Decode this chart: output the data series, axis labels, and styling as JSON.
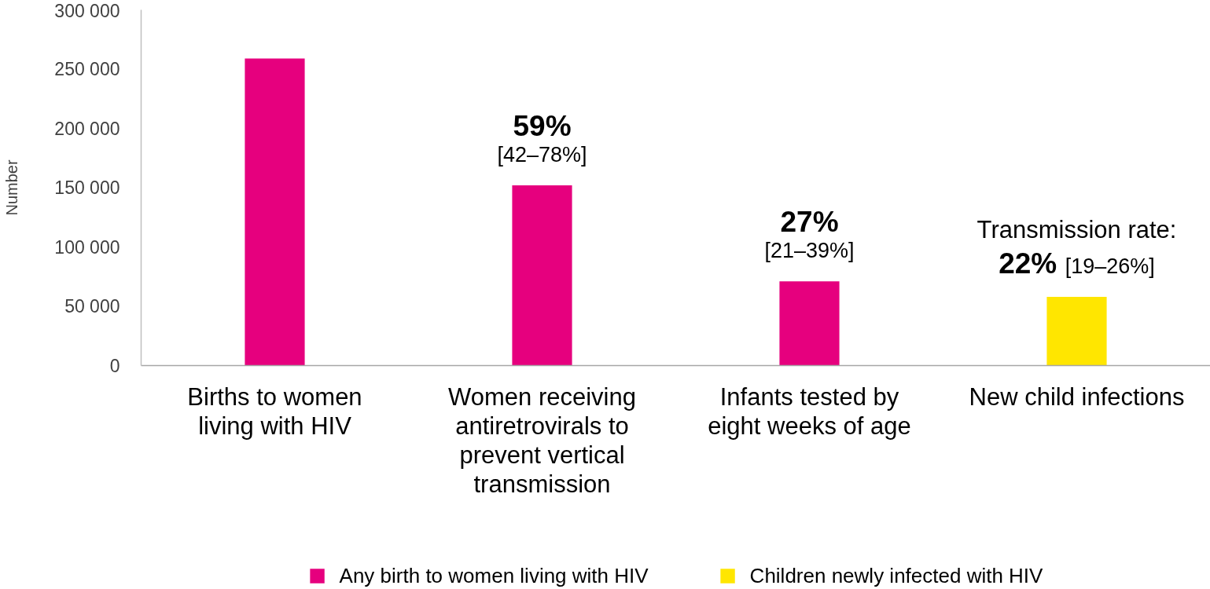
{
  "chart_data": {
    "type": "bar",
    "ylabel": "Number",
    "categories": [
      "Births to women living with HIV",
      "Women receiving antiretrovirals to prevent vertical transmission",
      "Infants tested by eight weeks of age",
      "New child infections"
    ],
    "series": [
      {
        "name": "Any birth to women living with HIV",
        "color": "#e6007e",
        "values": [
          259000,
          152000,
          71000,
          null
        ]
      },
      {
        "name": "Children newly infected with HIV",
        "color": "#ffe600",
        "values": [
          null,
          null,
          null,
          58000
        ]
      }
    ],
    "stacked": true,
    "ylim": [
      0,
      300000
    ],
    "yticks": [
      0,
      {
        "value": 50000,
        "label": "50 000"
      },
      {
        "value": 100000,
        "label": "100 000"
      },
      {
        "value": 150000,
        "label": "150 000"
      },
      {
        "value": 200000,
        "label": "200 000"
      },
      {
        "value": 250000,
        "label": "250 000"
      },
      {
        "value": 300000,
        "label": "300 000"
      }
    ],
    "legend": "bottom",
    "annotations": [
      {
        "text": "59%",
        "x": "Women receiving antiretrovirals to prevent vertical transmission",
        "y": 152000
      },
      {
        "text": "[42–78%]",
        "x": "Women receiving antiretrovirals to prevent vertical transmission",
        "y": 152000
      },
      {
        "text": "27%",
        "x": "Infants tested by eight weeks of age",
        "y": 71000
      },
      {
        "text": "[21–39%]",
        "x": "Infants tested by eight weeks of age",
        "y": 71000
      },
      {
        "text": "Transmission rate:",
        "x": "New child infections",
        "y": 58000
      },
      {
        "text": "22%",
        "x": "New child infections",
        "y": 58000
      },
      {
        "text": "[19–26%]",
        "x": "New child infections",
        "y": 58000
      }
    ]
  }
}
